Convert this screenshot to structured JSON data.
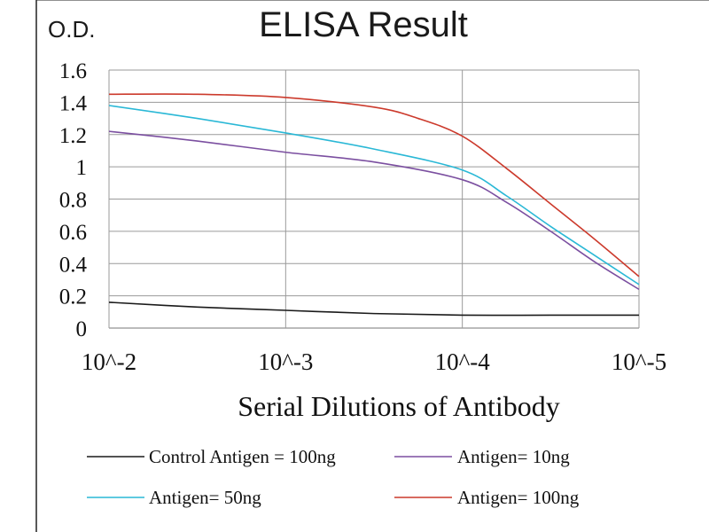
{
  "chart_data": {
    "type": "line",
    "title": "ELISA Result",
    "ylabel": "O.D.",
    "xlabel": "Serial Dilutions of Antibody",
    "x_ticks": [
      "10^-2",
      "10^-3",
      "10^-4",
      "10^-5"
    ],
    "y_ticks": [
      "0",
      "0.2",
      "0.4",
      "0.6",
      "0.8",
      "1",
      "1.2",
      "1.4",
      "1.6"
    ],
    "ylim": [
      0,
      1.6
    ],
    "grid": true,
    "legend_position": "bottom",
    "series": [
      {
        "name": "Control Antigen = 100ng",
        "color": "#1a1a1a",
        "x": [
          -2,
          -2.5,
          -3,
          -3.5,
          -4,
          -4.5,
          -5
        ],
        "y": [
          0.16,
          0.13,
          0.11,
          0.09,
          0.08,
          0.08,
          0.08
        ]
      },
      {
        "name": "Antigen= 10ng",
        "color": "#7b4fa0",
        "x": [
          -2,
          -2.5,
          -3,
          -3.5,
          -4,
          -4.25,
          -4.5,
          -4.75,
          -5
        ],
        "y": [
          1.22,
          1.16,
          1.09,
          1.03,
          0.92,
          0.78,
          0.6,
          0.41,
          0.24
        ]
      },
      {
        "name": "Antigen= 50ng",
        "color": "#2ab8d6",
        "x": [
          -2,
          -2.5,
          -3,
          -3.5,
          -4,
          -4.25,
          -4.5,
          -4.75,
          -5
        ],
        "y": [
          1.38,
          1.3,
          1.21,
          1.11,
          0.98,
          0.82,
          0.63,
          0.45,
          0.27
        ]
      },
      {
        "name": "Antigen= 100ng",
        "color": "#cc3a2c",
        "x": [
          -2,
          -2.5,
          -3,
          -3.5,
          -3.75,
          -4,
          -4.25,
          -4.5,
          -4.75,
          -5
        ],
        "y": [
          1.45,
          1.45,
          1.43,
          1.37,
          1.3,
          1.19,
          0.99,
          0.77,
          0.55,
          0.32
        ]
      }
    ]
  }
}
